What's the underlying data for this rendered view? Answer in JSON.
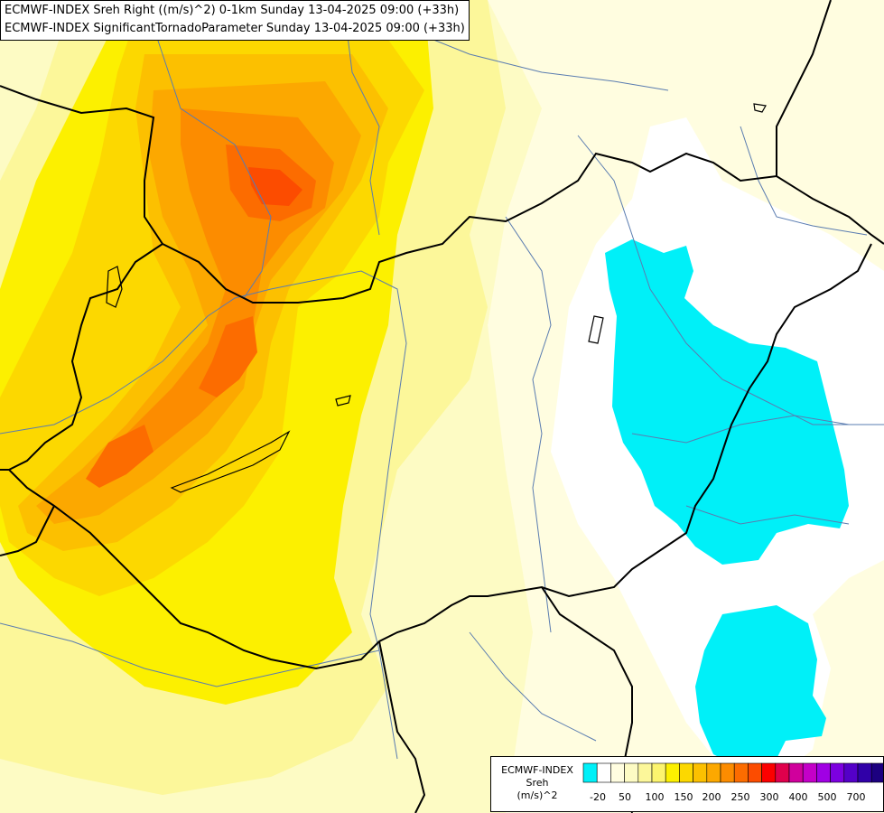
{
  "titles": [
    "ECMWF-INDEX Sreh Right ((m/s)^2) 0-1km Sunday 13-04-2025 09:00 (+33h)",
    "ECMWF-INDEX SignificantTornadoParameter Sunday 13-04-2025 09:00 (+33h)"
  ],
  "legend": {
    "model": "ECMWF-INDEX",
    "variable": "Sreh",
    "unit": "(m/s)^2",
    "swatches": [
      "#00f0f8",
      "#ffffff",
      "#fffde0",
      "#fdfbc4",
      "#fcf79a",
      "#fcf46e",
      "#fcf000",
      "#fcd800",
      "#fcc000",
      "#fca800",
      "#fc8c00",
      "#fc6c00",
      "#fc4c00",
      "#fc0000",
      "#e0004c",
      "#d0009c",
      "#c400c8",
      "#a000e4",
      "#7c00e0",
      "#5400c8",
      "#3000a8",
      "#1c0080"
    ],
    "tick_labels": [
      "-20",
      "50",
      "100",
      "150",
      "200",
      "250",
      "300",
      "400",
      "500",
      "700"
    ]
  },
  "colors": {
    "sreh_low": "#fdfbc4",
    "sreh_mid": "#fcf000",
    "sreh_high": "#fca800",
    "sreh_peak": "#fc4c00",
    "negative": "#00f0f8",
    "border": "#000000",
    "river": "#5a7cb0"
  }
}
